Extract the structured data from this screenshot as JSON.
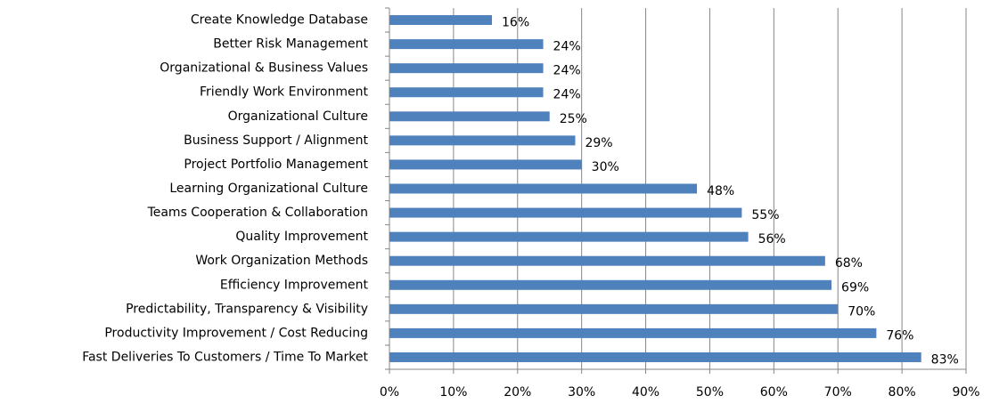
{
  "chart_data": {
    "type": "barh",
    "categories": [
      "Create Knowledge Database",
      "Better Risk Management",
      "Organizational & Business Values",
      "Friendly Work Environment",
      "Organizational Culture",
      "Business Support / Alignment",
      "Project Portfolio Management",
      "Learning Organizational  Culture",
      "Teams Cooperation & Collaboration",
      "Quality Improvement",
      "Work Organization Methods",
      "Efficiency Improvement",
      "Predictability, Transparency & Visibility",
      "Productivity Improvement / Cost Reducing",
      "Fast Deliveries To Customers / Time To Market"
    ],
    "values": [
      16,
      24,
      24,
      24,
      25,
      29,
      30,
      48,
      55,
      56,
      68,
      69,
      70,
      76,
      83
    ],
    "value_labels": [
      "16%",
      "24%",
      "24%",
      "24%",
      "25%",
      "29%",
      "30%",
      "48%",
      "55%",
      "56%",
      "68%",
      "69%",
      "70%",
      "76%",
      "83%"
    ],
    "color": "#4f81bd",
    "xlim": [
      0,
      90
    ],
    "xticks": [
      {
        "value": 0,
        "label": "0%"
      },
      {
        "value": 10,
        "label": "10%"
      },
      {
        "value": 20,
        "label": "20%"
      },
      {
        "value": 30,
        "label": "30%"
      },
      {
        "value": 40,
        "label": "40%"
      },
      {
        "value": 50,
        "label": "50%"
      },
      {
        "value": 60,
        "label": "60%"
      },
      {
        "value": 70,
        "label": "70%"
      },
      {
        "value": 80,
        "label": "80%"
      },
      {
        "value": 90,
        "label": "90%"
      }
    ],
    "grid": true
  }
}
